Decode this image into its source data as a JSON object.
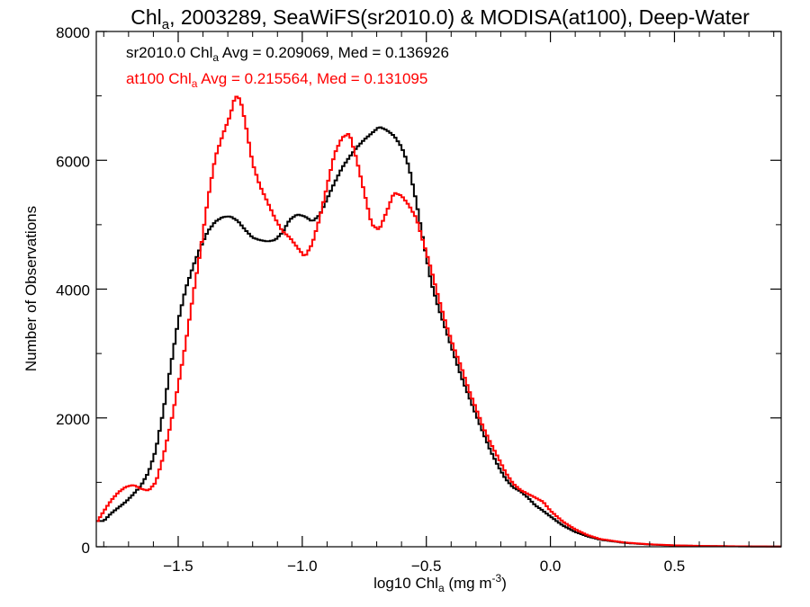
{
  "chart_data": {
    "type": "line",
    "title_parts": {
      "pre": "Chl",
      "sub": "a",
      "post": ", 2003289, SeaWiFS(sr2010.0) & MODISA(at100), Deep-Water"
    },
    "xlabel_parts": {
      "pre": "log10 Chl",
      "sub": "a",
      "post": " (mg m",
      "sup": "-3",
      "end": ")"
    },
    "ylabel": "Number of Observations",
    "xlim": [
      -1.83,
      0.93
    ],
    "ylim": [
      0,
      8000
    ],
    "x_ticks": [
      -1.5,
      -1.0,
      -0.5,
      0.0,
      0.5
    ],
    "x_tick_labels": [
      "−1.5",
      "−1.0",
      "−0.5",
      "0.0",
      "0.5"
    ],
    "y_ticks": [
      0,
      2000,
      4000,
      6000,
      8000
    ],
    "y_tick_labels": [
      "0",
      "2000",
      "4000",
      "6000",
      "8000"
    ],
    "annotations": [
      {
        "pre": "sr2010.0 Chl",
        "sub": "a",
        "post": " Avg = 0.209069, Med = 0.136926",
        "color": "#000000"
      },
      {
        "pre": "at100 Chl",
        "sub": "a",
        "post": " Avg = 0.215564, Med = 0.131095",
        "color": "#ff0000"
      }
    ],
    "series": [
      {
        "color": "#000000",
        "points": [
          [
            -1.83,
            400
          ],
          [
            -1.8,
            400
          ],
          [
            -1.77,
            520
          ],
          [
            -1.74,
            610
          ],
          [
            -1.71,
            700
          ],
          [
            -1.68,
            820
          ],
          [
            -1.65,
            950
          ],
          [
            -1.62,
            1150
          ],
          [
            -1.59,
            1500
          ],
          [
            -1.56,
            2100
          ],
          [
            -1.53,
            2800
          ],
          [
            -1.5,
            3500
          ],
          [
            -1.47,
            4000
          ],
          [
            -1.44,
            4350
          ],
          [
            -1.41,
            4650
          ],
          [
            -1.38,
            4900
          ],
          [
            -1.35,
            5050
          ],
          [
            -1.32,
            5120
          ],
          [
            -1.29,
            5130
          ],
          [
            -1.26,
            5060
          ],
          [
            -1.23,
            4920
          ],
          [
            -1.2,
            4800
          ],
          [
            -1.17,
            4760
          ],
          [
            -1.14,
            4740
          ],
          [
            -1.11,
            4760
          ],
          [
            -1.08,
            4880
          ],
          [
            -1.05,
            5080
          ],
          [
            -1.02,
            5160
          ],
          [
            -0.99,
            5130
          ],
          [
            -0.96,
            5050
          ],
          [
            -0.93,
            5150
          ],
          [
            -0.9,
            5400
          ],
          [
            -0.87,
            5650
          ],
          [
            -0.84,
            5880
          ],
          [
            -0.81,
            6050
          ],
          [
            -0.78,
            6200
          ],
          [
            -0.75,
            6320
          ],
          [
            -0.72,
            6420
          ],
          [
            -0.69,
            6520
          ],
          [
            -0.66,
            6470
          ],
          [
            -0.63,
            6380
          ],
          [
            -0.6,
            6210
          ],
          [
            -0.57,
            5900
          ],
          [
            -0.54,
            5350
          ],
          [
            -0.51,
            4700
          ],
          [
            -0.48,
            4100
          ],
          [
            -0.45,
            3700
          ],
          [
            -0.42,
            3350
          ],
          [
            -0.39,
            3000
          ],
          [
            -0.36,
            2650
          ],
          [
            -0.33,
            2350
          ],
          [
            -0.3,
            2050
          ],
          [
            -0.27,
            1760
          ],
          [
            -0.24,
            1480
          ],
          [
            -0.21,
            1250
          ],
          [
            -0.18,
            1050
          ],
          [
            -0.15,
            920
          ],
          [
            -0.12,
            860
          ],
          [
            -0.09,
            760
          ],
          [
            -0.06,
            640
          ],
          [
            -0.03,
            560
          ],
          [
            0.0,
            470
          ],
          [
            0.05,
            330
          ],
          [
            0.1,
            230
          ],
          [
            0.15,
            160
          ],
          [
            0.2,
            110
          ],
          [
            0.3,
            60
          ],
          [
            0.4,
            35
          ],
          [
            0.5,
            20
          ],
          [
            0.6,
            12
          ],
          [
            0.7,
            8
          ],
          [
            0.8,
            5
          ],
          [
            0.93,
            3
          ]
        ]
      },
      {
        "color": "#ff0000",
        "points": [
          [
            -1.83,
            370
          ],
          [
            -1.8,
            550
          ],
          [
            -1.77,
            720
          ],
          [
            -1.74,
            850
          ],
          [
            -1.71,
            930
          ],
          [
            -1.68,
            960
          ],
          [
            -1.65,
            900
          ],
          [
            -1.62,
            870
          ],
          [
            -1.59,
            1000
          ],
          [
            -1.56,
            1400
          ],
          [
            -1.53,
            1900
          ],
          [
            -1.5,
            2500
          ],
          [
            -1.47,
            3150
          ],
          [
            -1.44,
            3900
          ],
          [
            -1.41,
            4600
          ],
          [
            -1.38,
            5400
          ],
          [
            -1.35,
            6050
          ],
          [
            -1.32,
            6400
          ],
          [
            -1.29,
            6700
          ],
          [
            -1.27,
            7000
          ],
          [
            -1.25,
            6950
          ],
          [
            -1.23,
            6600
          ],
          [
            -1.2,
            5950
          ],
          [
            -1.17,
            5600
          ],
          [
            -1.14,
            5350
          ],
          [
            -1.11,
            5100
          ],
          [
            -1.08,
            4900
          ],
          [
            -1.05,
            4800
          ],
          [
            -1.02,
            4650
          ],
          [
            -0.99,
            4500
          ],
          [
            -0.96,
            4700
          ],
          [
            -0.93,
            5100
          ],
          [
            -0.9,
            5600
          ],
          [
            -0.87,
            6100
          ],
          [
            -0.84,
            6350
          ],
          [
            -0.81,
            6420
          ],
          [
            -0.78,
            6000
          ],
          [
            -0.75,
            5500
          ],
          [
            -0.72,
            5000
          ],
          [
            -0.69,
            4920
          ],
          [
            -0.66,
            5200
          ],
          [
            -0.63,
            5500
          ],
          [
            -0.6,
            5450
          ],
          [
            -0.57,
            5300
          ],
          [
            -0.54,
            5100
          ],
          [
            -0.51,
            4700
          ],
          [
            -0.48,
            4300
          ],
          [
            -0.45,
            3850
          ],
          [
            -0.42,
            3450
          ],
          [
            -0.39,
            3100
          ],
          [
            -0.36,
            2800
          ],
          [
            -0.33,
            2450
          ],
          [
            -0.3,
            2150
          ],
          [
            -0.27,
            1850
          ],
          [
            -0.24,
            1600
          ],
          [
            -0.21,
            1380
          ],
          [
            -0.18,
            1150
          ],
          [
            -0.15,
            980
          ],
          [
            -0.12,
            880
          ],
          [
            -0.09,
            820
          ],
          [
            -0.06,
            760
          ],
          [
            -0.03,
            700
          ],
          [
            0.0,
            560
          ],
          [
            0.05,
            390
          ],
          [
            0.1,
            270
          ],
          [
            0.15,
            180
          ],
          [
            0.2,
            120
          ],
          [
            0.3,
            65
          ],
          [
            0.4,
            38
          ],
          [
            0.5,
            22
          ],
          [
            0.6,
            14
          ],
          [
            0.7,
            9
          ],
          [
            0.8,
            6
          ],
          [
            0.93,
            4
          ]
        ]
      }
    ]
  }
}
